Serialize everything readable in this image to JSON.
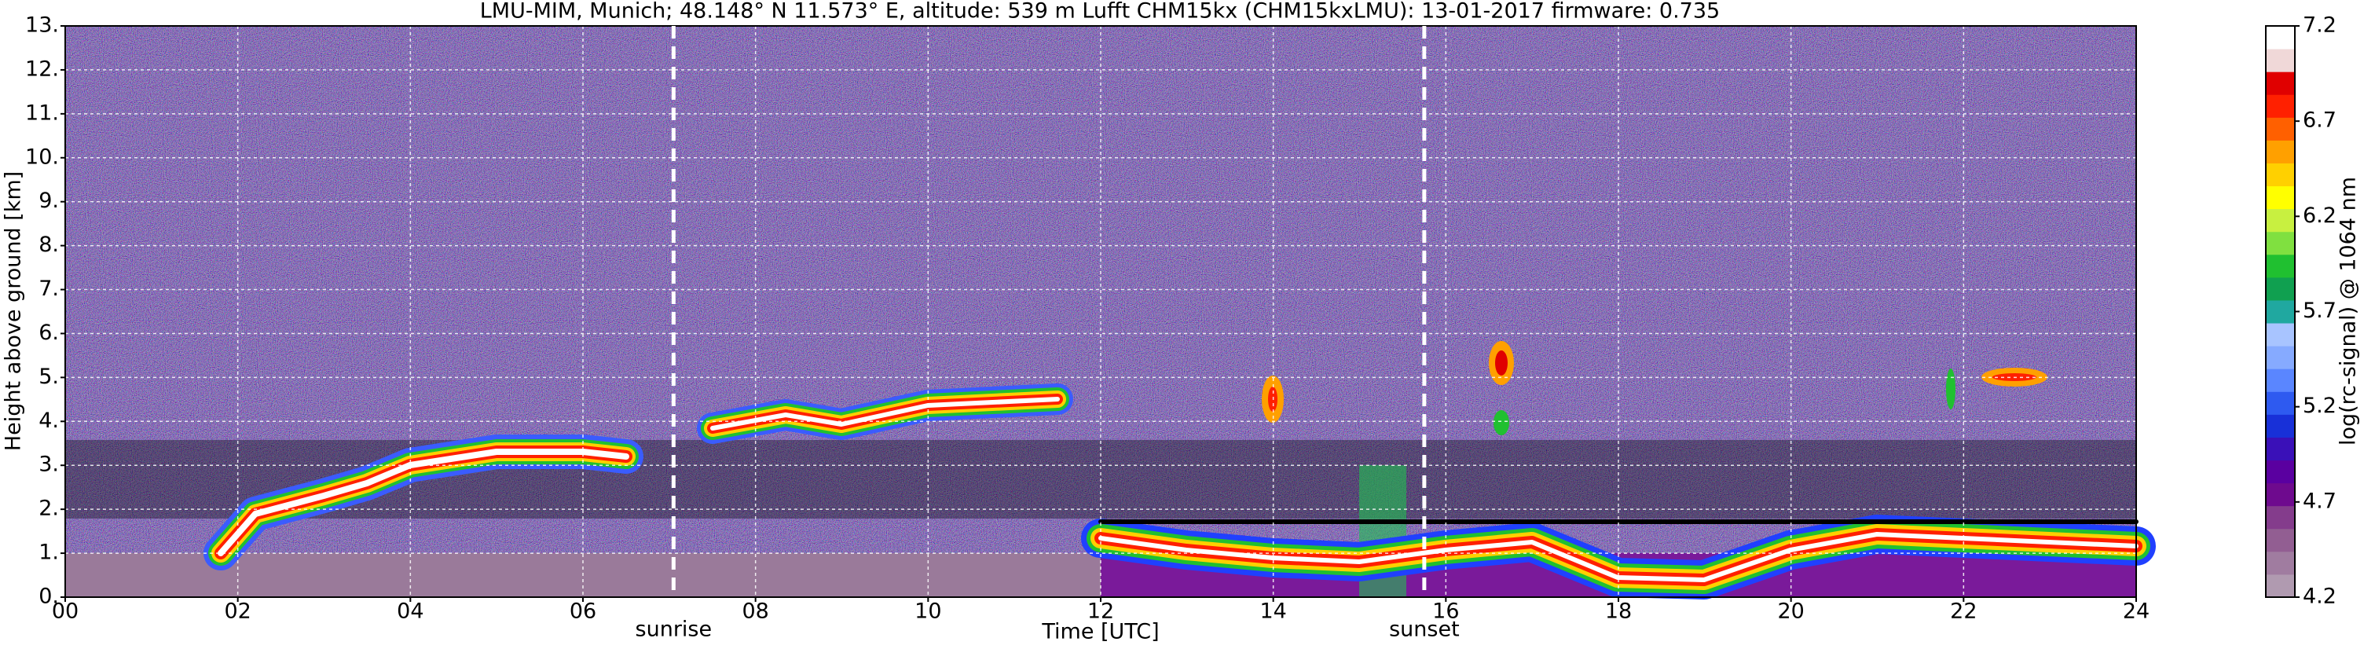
{
  "chart_data": {
    "type": "heatmap",
    "title": "LMU-MIM, Munich; 48.148° N 11.573° E, altitude: 539 m    Lufft CHM15kx (CHM15kxLMU): 13-01-2017    firmware: 0.735",
    "x_label": "Time [UTC]",
    "y_label": "Height above ground [km]",
    "xlim": [
      0,
      24
    ],
    "xticks": [
      {
        "value": 0,
        "label": "00"
      },
      {
        "value": 2,
        "label": "02"
      },
      {
        "value": 4,
        "label": "04"
      },
      {
        "value": 6,
        "label": "06"
      },
      {
        "value": 8,
        "label": "08"
      },
      {
        "value": 10,
        "label": "10"
      },
      {
        "value": 12,
        "label": "12"
      },
      {
        "value": 14,
        "label": "14"
      },
      {
        "value": 16,
        "label": "16"
      },
      {
        "value": 18,
        "label": "18"
      },
      {
        "value": 20,
        "label": "20"
      },
      {
        "value": 22,
        "label": "22"
      },
      {
        "value": 24,
        "label": "24"
      }
    ],
    "ylim": [
      0,
      13
    ],
    "yticks": [
      {
        "value": 0,
        "label": "0."
      },
      {
        "value": 1,
        "label": "1."
      },
      {
        "value": 2,
        "label": "2."
      },
      {
        "value": 3,
        "label": "3."
      },
      {
        "value": 4,
        "label": "4."
      },
      {
        "value": 5,
        "label": "5."
      },
      {
        "value": 6,
        "label": "6."
      },
      {
        "value": 7,
        "label": "7."
      },
      {
        "value": 8,
        "label": "8."
      },
      {
        "value": 9,
        "label": "9."
      },
      {
        "value": 10,
        "label": "10."
      },
      {
        "value": 11,
        "label": "11."
      },
      {
        "value": 12,
        "label": "12."
      },
      {
        "value": 13,
        "label": "13."
      }
    ],
    "grid": true,
    "annotations": [
      {
        "x": 7.05,
        "label": "sunrise"
      },
      {
        "x": 15.75,
        "label": "sunset"
      }
    ],
    "colorbar": {
      "label": "log(rc-signal) @ 1064 nm",
      "lim": [
        4.2,
        7.2
      ],
      "ticks": [
        4.2,
        4.7,
        5.2,
        5.7,
        6.2,
        6.7,
        7.2
      ],
      "colors": [
        "#b09ab0",
        "#a07ca0",
        "#925e92",
        "#843c8c",
        "#6e0a8e",
        "#5a00a0",
        "#3a10b8",
        "#1830d8",
        "#2e5af0",
        "#5a86ff",
        "#86aaff",
        "#a8c4ff",
        "#20a8a0",
        "#10a050",
        "#20c030",
        "#80e040",
        "#c8f040",
        "#ffff00",
        "#ffd000",
        "#ffa000",
        "#ff6000",
        "#ff2000",
        "#e00000",
        "#f0d8d8",
        "#ffffff"
      ]
    }
  }
}
